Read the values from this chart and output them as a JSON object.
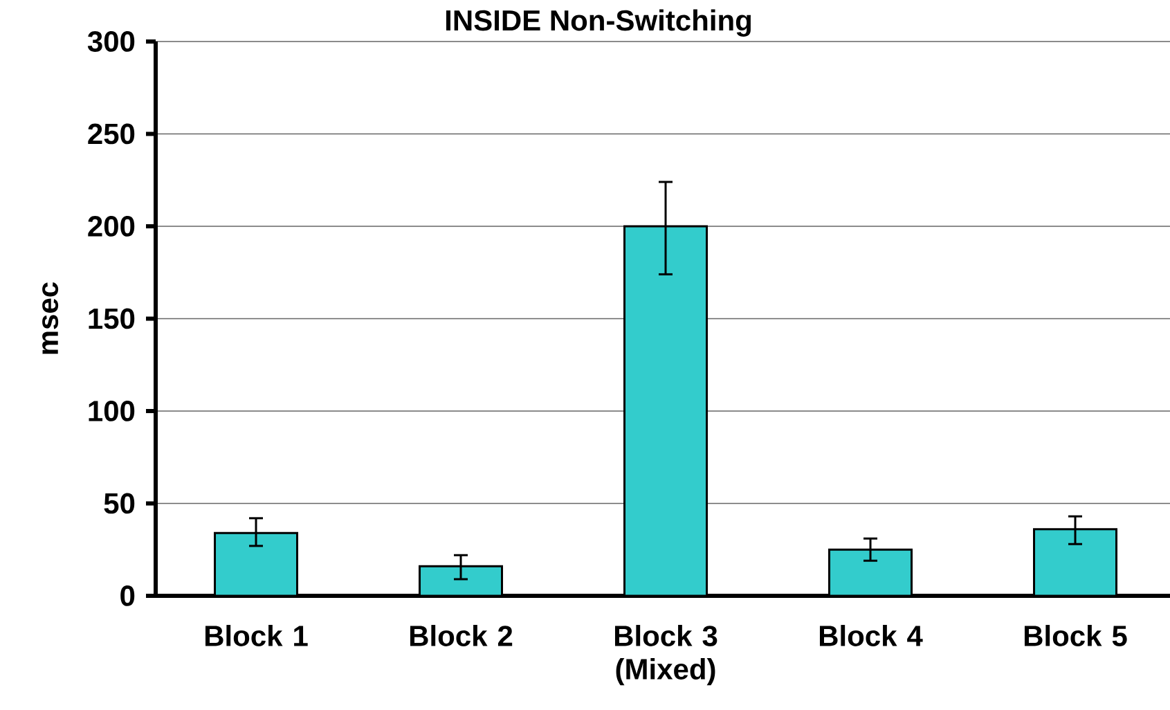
{
  "chart_data": {
    "type": "bar",
    "title": "INSIDE Non-Switching",
    "ylabel": "msec",
    "categories": [
      "Block 1",
      "Block 2",
      "Block 3 (Mixed)",
      "Block 4",
      "Block 5"
    ],
    "values": [
      34,
      16,
      200,
      25,
      36
    ],
    "errors": [
      [
        27,
        42
      ],
      [
        9,
        22
      ],
      [
        174,
        224
      ],
      [
        19,
        31
      ],
      [
        28,
        43
      ]
    ],
    "color": "#33cccc",
    "ylim": [
      0,
      300
    ],
    "yticks": [
      0,
      50,
      100,
      150,
      200,
      250,
      300
    ],
    "grid": "y"
  }
}
